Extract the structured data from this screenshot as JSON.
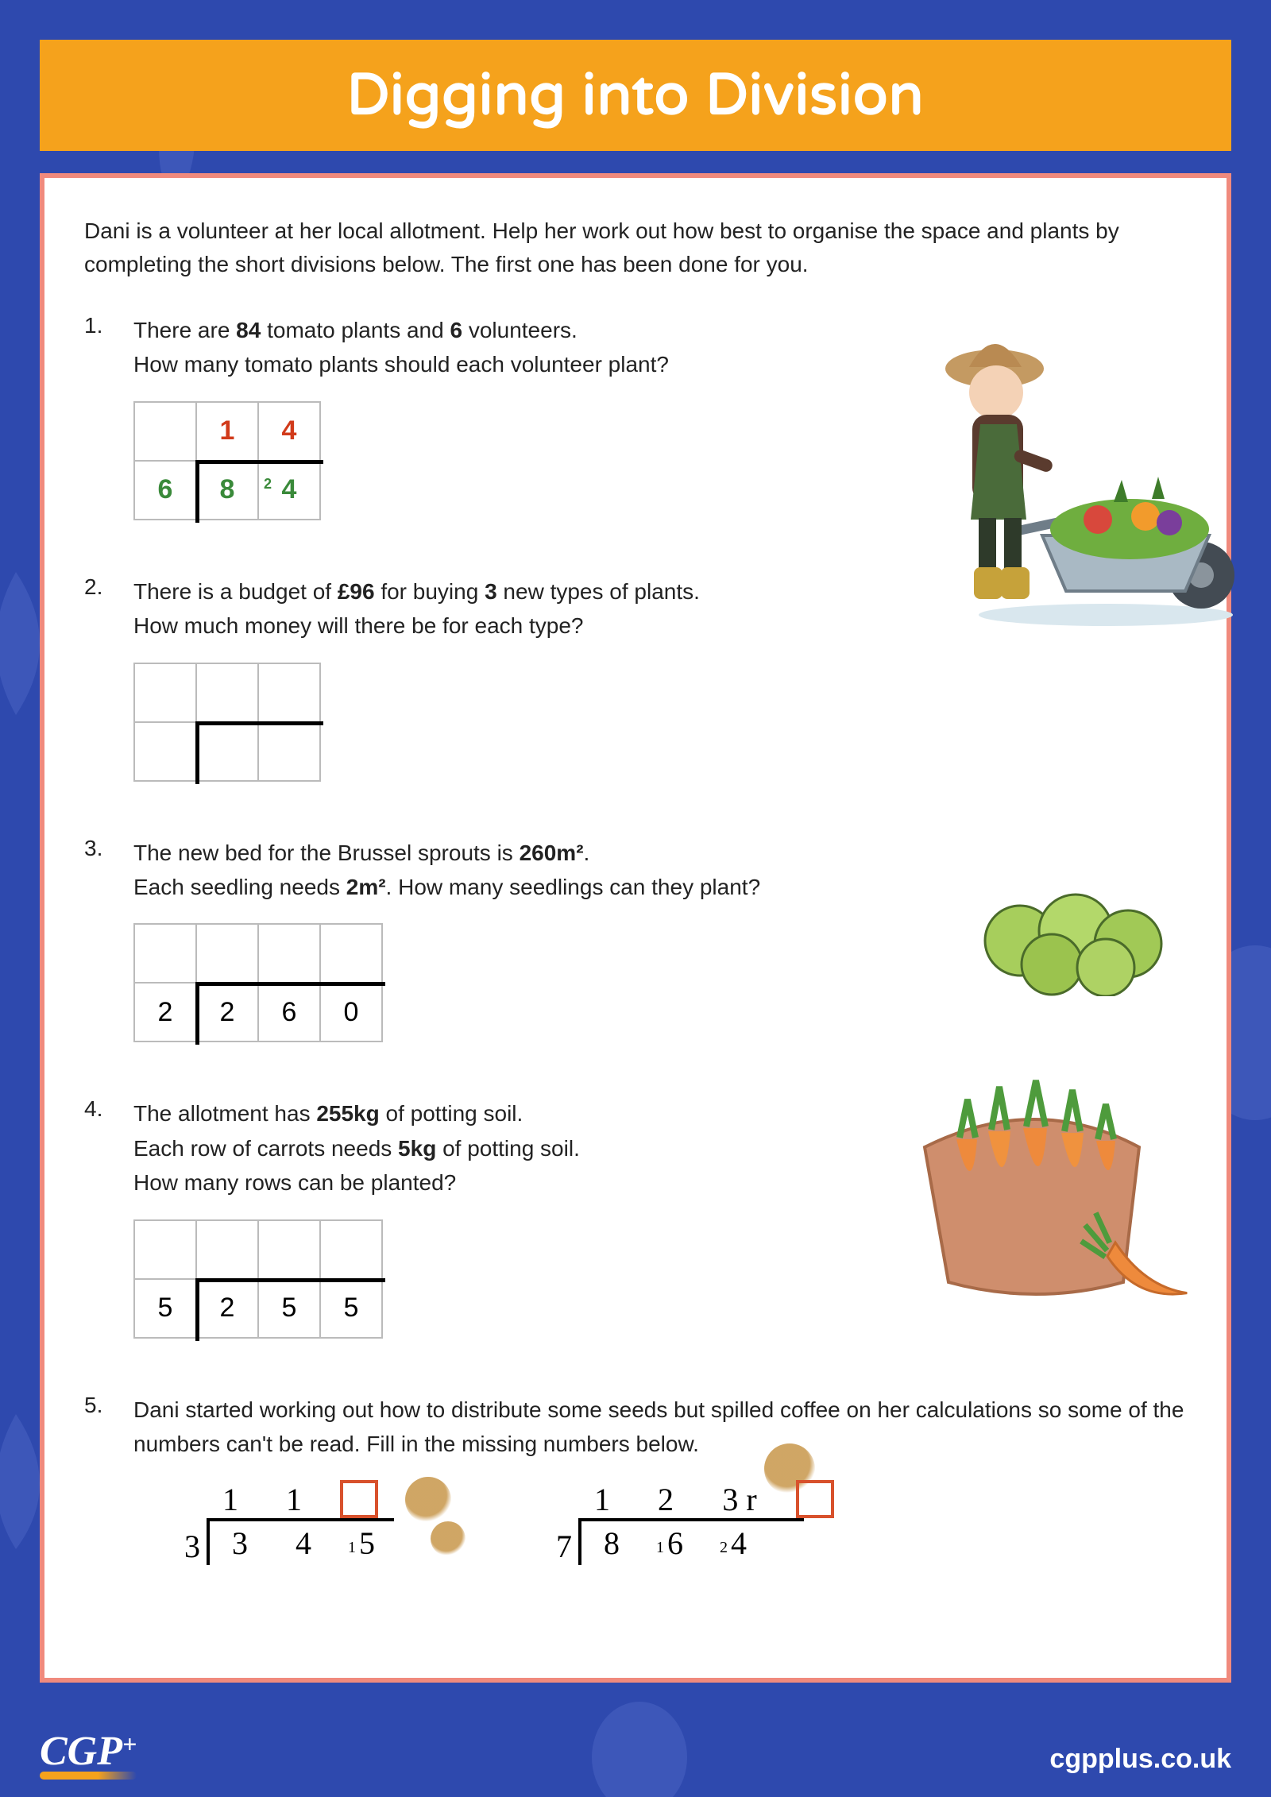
{
  "title": "Digging into Division",
  "colors": {
    "page_bg": "#2e49ae",
    "banner_bg": "#f5a21c",
    "banner_text": "#ffffff",
    "sheet_bg": "#ffffff",
    "sheet_border": "#f08a7d",
    "text": "#222222",
    "answer_red": "#d13a1a",
    "work_green": "#3a8a3a",
    "answer_box_border": "#d8512c",
    "coffee_stain": "#c7964a"
  },
  "intro": "Dani is a volunteer at her local allotment. Help her work out how best to organise the space and plants by completing the short divisions below. The first one has been done for you.",
  "questions": {
    "q1": {
      "num": "1.",
      "text_html": "There are <b>84</b> tomato plants and <b>6</b> volunteers.<br>How many tomato plants should each volunteer plant?",
      "grid": {
        "cols": 3,
        "rows": 2,
        "quot": [
          "",
          "1",
          "4"
        ],
        "divisor": "6",
        "dividend": [
          "8",
          "4"
        ],
        "carry_on_dividend_index": 1,
        "carry_value": "2"
      }
    },
    "q2": {
      "num": "2.",
      "text_html": "There is a budget of <b>£96</b> for buying <b>3</b> new types of plants.<br>How much money will there be for each type?",
      "grid": {
        "cols": 3,
        "rows": 2,
        "quot": [
          "",
          "",
          ""
        ],
        "divisor": "",
        "dividend": [
          "",
          ""
        ]
      }
    },
    "q3": {
      "num": "3.",
      "text_html": "The new bed for the Brussel sprouts is <b>260m²</b>.<br>Each seedling needs <b>2m²</b>. How many seedlings can they plant?",
      "grid": {
        "cols": 4,
        "rows": 2,
        "quot": [
          "",
          "",
          "",
          ""
        ],
        "divisor": "2",
        "dividend": [
          "2",
          "6",
          "0"
        ]
      }
    },
    "q4": {
      "num": "4.",
      "text_html": "The allotment has <b>255kg</b> of potting soil.<br>Each row of carrots needs <b>5kg</b> of potting soil.<br>How many rows can be planted?",
      "grid": {
        "cols": 4,
        "rows": 2,
        "quot": [
          "",
          "",
          "",
          ""
        ],
        "divisor": "5",
        "dividend": [
          "2",
          "5",
          "5"
        ]
      }
    },
    "q5": {
      "num": "5.",
      "text_html": "Dani started working out how to distribute some seeds but spilled coffee on her calculations so some of the numbers can't be read. Fill in the missing numbers below.",
      "a": {
        "divisor": "3",
        "quot": [
          "1",
          "1",
          ""
        ],
        "dividend": [
          "3",
          "4",
          "5"
        ],
        "carries": {
          "2": "1"
        }
      },
      "b": {
        "divisor": "7",
        "quot": [
          "1",
          "2",
          "3 r",
          ""
        ],
        "dividend": [
          "8",
          "6",
          "4"
        ],
        "carries": {
          "1": "1",
          "2": "2"
        }
      }
    }
  },
  "footer": {
    "logo": "CGP",
    "logo_plus": "+",
    "url": "cgpplus.co.uk"
  }
}
